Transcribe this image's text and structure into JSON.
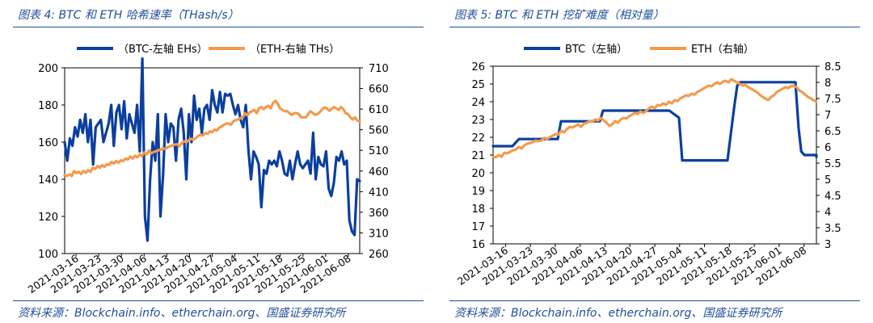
{
  "colors": {
    "btc": "#0b3f9e",
    "eth": "#f39a4c",
    "header": "#1f4e9a",
    "axis": "#000000"
  },
  "chart_data": [
    {
      "type": "line",
      "title": "图表 4:  BTC 和 ETH 哈希速率（THash/s）",
      "source": "资料来源：Blockchain.info、etherchain.org、国盛证券研究所",
      "x_ticks": [
        "2021-03-16",
        "2021-03-23",
        "2021-03-30",
        "2021-04-06",
        "2021-04-13",
        "2021-04-20",
        "2021-04-27",
        "2021-05-04",
        "2021-05-11",
        "2021-05-18",
        "2021-05-25",
        "2021-06-01",
        "2021-06-08"
      ],
      "y_left": {
        "min": 100,
        "max": 200,
        "step": 20,
        "ticks": [
          "100",
          "120",
          "140",
          "160",
          "180",
          "200"
        ]
      },
      "y_right": {
        "min": 260,
        "max": 710,
        "step": 50,
        "ticks": [
          "260",
          "310",
          "360",
          "410",
          "460",
          "510",
          "560",
          "610",
          "660",
          "710"
        ]
      },
      "series": [
        {
          "name": "（BTC-左轴 EHs）",
          "axis": "left",
          "values": [
            160,
            150,
            162,
            158,
            168,
            163,
            172,
            165,
            175,
            160,
            172,
            148,
            168,
            170,
            172,
            160,
            165,
            170,
            180,
            158,
            176,
            180,
            167,
            182,
            162,
            175,
            170,
            165,
            180,
            155,
            205,
            120,
            107,
            140,
            160,
            150,
            175,
            120,
            142,
            175,
            160,
            170,
            168,
            150,
            172,
            178,
            165,
            140,
            175,
            160,
            185,
            172,
            178,
            165,
            178,
            180,
            172,
            188,
            180,
            176,
            187,
            176,
            186,
            185,
            186,
            180,
            175,
            180,
            172,
            168,
            180,
            156,
            140,
            155,
            152,
            148,
            125,
            145,
            143,
            150,
            148,
            150,
            147,
            155,
            150,
            143,
            142,
            150,
            140,
            148,
            155,
            148,
            146,
            148,
            150,
            143,
            165,
            140,
            152,
            148,
            147,
            155,
            135,
            131,
            138,
            152,
            150,
            155,
            148,
            150,
            118,
            112,
            110,
            140,
            139
          ]
        },
        {
          "name": "（ETH-右轴 THs）",
          "axis": "right",
          "values": [
            450,
            448,
            452,
            448,
            460,
            455,
            458,
            453,
            460,
            456,
            462,
            458,
            468,
            465,
            472,
            468,
            474,
            470,
            476,
            475,
            482,
            478,
            484,
            480,
            486,
            484,
            490,
            488,
            495,
            490,
            497,
            493,
            500,
            496,
            505,
            500,
            510,
            503,
            506,
            508,
            510,
            512,
            515,
            513,
            518,
            520,
            522,
            524,
            525,
            520,
            528,
            532,
            530,
            535,
            538,
            536,
            540,
            545,
            548,
            546,
            552,
            550,
            556,
            554,
            560,
            558,
            565,
            568,
            572,
            575,
            575,
            572,
            580,
            583,
            585,
            588,
            590,
            600,
            595,
            602,
            605,
            608,
            600,
            612,
            615,
            610,
            615,
            618,
            612,
            625,
            630,
            623,
            612,
            608,
            605,
            605,
            600,
            596,
            600,
            600,
            598,
            590,
            590,
            590,
            598,
            605,
            600,
            596,
            598,
            603,
            610,
            614,
            612,
            606,
            610,
            615,
            612,
            608,
            615,
            610,
            600,
            598,
            590,
            585,
            590,
            582,
            580
          ]
        }
      ]
    },
    {
      "type": "line",
      "title": "图表 5:  BTC 和 ETH 挖矿难度（相对量）",
      "source": "资料来源：Blockchain.info、etherchain.org、国盛证券研究所",
      "x_ticks": [
        "2021-03-16",
        "2021-03-23",
        "2021-03-30",
        "2021-04-06",
        "2021-04-13",
        "2021-04-20",
        "2021-04-27",
        "2021-05-04",
        "2021-05-11",
        "2021-05-18",
        "2021-05-25",
        "2021-06-01",
        "2021-06-08"
      ],
      "y_left": {
        "min": 16,
        "max": 26,
        "step": 1,
        "ticks": [
          "16",
          "17",
          "18",
          "19",
          "20",
          "21",
          "22",
          "23",
          "24",
          "25",
          "26"
        ]
      },
      "y_right": {
        "min": 3,
        "max": 8.5,
        "step": 0.5,
        "ticks": [
          "3",
          "3.5",
          "4",
          "4.5",
          "5",
          "5.5",
          "6",
          "6.5",
          "7",
          "7.5",
          "8",
          "8.5"
        ]
      },
      "series": [
        {
          "name": "BTC（左轴）",
          "axis": "left",
          "points": [
            [
              0,
              21.5
            ],
            [
              0.06,
              21.5
            ],
            [
              0.08,
              21.9
            ],
            [
              0.2,
              21.9
            ],
            [
              0.21,
              22.9
            ],
            [
              0.33,
              22.9
            ],
            [
              0.34,
              23.5
            ],
            [
              0.545,
              23.5
            ],
            [
              0.575,
              23.1
            ],
            [
              0.585,
              20.7
            ],
            [
              0.725,
              20.7
            ],
            [
              0.745,
              23.6
            ],
            [
              0.755,
              24.9
            ],
            [
              0.765,
              25.1
            ],
            [
              0.935,
              25.1
            ],
            [
              0.945,
              22.5
            ],
            [
              0.953,
              21.2
            ],
            [
              0.963,
              21.0
            ],
            [
              1.0,
              21.0
            ],
            [
              1.0,
              20.9
            ]
          ]
        },
        {
          "name": "ETH（右轴）",
          "axis": "right",
          "values": [
            5.7,
            5.68,
            5.75,
            5.7,
            5.82,
            5.8,
            5.85,
            5.9,
            5.92,
            6.0,
            5.95,
            6.05,
            6.1,
            6.12,
            6.15,
            6.2,
            6.18,
            6.2,
            6.28,
            6.25,
            6.3,
            6.35,
            6.4,
            6.38,
            6.5,
            6.45,
            6.55,
            6.62,
            6.6,
            6.65,
            6.7,
            6.62,
            6.72,
            6.75,
            6.8,
            6.78,
            6.85,
            6.82,
            6.9,
            6.82,
            6.75,
            6.65,
            6.7,
            6.8,
            6.75,
            6.85,
            6.9,
            6.88,
            6.95,
            7.0,
            7.05,
            7.02,
            7.1,
            7.05,
            7.12,
            7.2,
            7.25,
            7.2,
            7.3,
            7.28,
            7.35,
            7.3,
            7.4,
            7.35,
            7.45,
            7.42,
            7.5,
            7.55,
            7.6,
            7.58,
            7.65,
            7.62,
            7.7,
            7.75,
            7.8,
            7.85,
            7.9,
            7.88,
            7.95,
            8.0,
            7.95,
            8.02,
            8.05,
            8.0,
            8.1,
            8.05,
            8.0,
            7.95,
            7.9,
            7.92,
            7.85,
            7.8,
            7.75,
            7.7,
            7.62,
            7.55,
            7.5,
            7.45,
            7.55,
            7.6,
            7.7,
            7.75,
            7.8,
            7.85,
            7.82,
            7.88,
            7.9,
            7.85,
            7.75,
            7.7,
            7.62,
            7.55,
            7.5,
            7.45,
            7.4
          ]
        }
      ]
    }
  ]
}
